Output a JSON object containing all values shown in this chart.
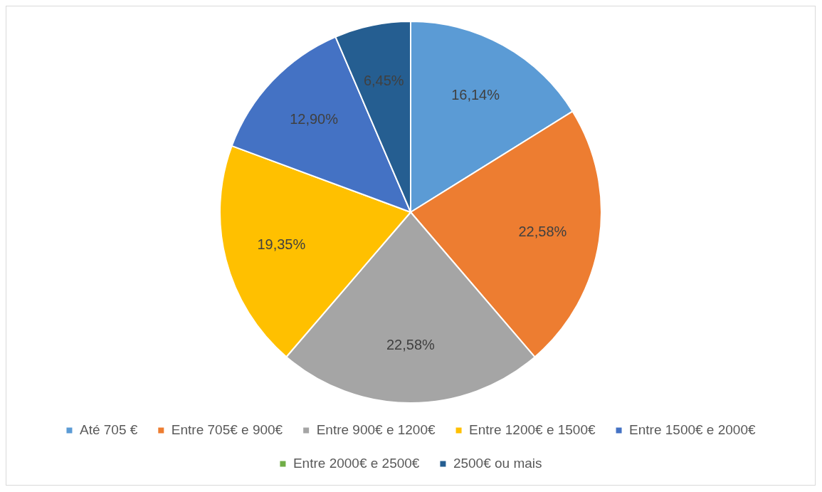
{
  "chart_data": {
    "type": "pie",
    "categories": [
      "Até 705 €",
      "Entre 705€ e 900€",
      "Entre 900€ e 1200€",
      "Entre 1200€ e 1500€",
      "Entre 1500€ e 2000€",
      "Entre 2000€ e 2500€",
      "2500€ ou mais"
    ],
    "values": [
      16.14,
      22.58,
      22.58,
      19.35,
      12.9,
      0,
      6.45
    ],
    "colors": [
      "#5b9bd5",
      "#ed7d31",
      "#a5a5a5",
      "#ffc000",
      "#4472c4",
      "#70ad47",
      "#255e91"
    ],
    "value_labels": [
      "16,14%",
      "22,58%",
      "22,58%",
      "19,35%",
      "12,90%",
      null,
      "6,45%"
    ],
    "legend": "bottom"
  }
}
